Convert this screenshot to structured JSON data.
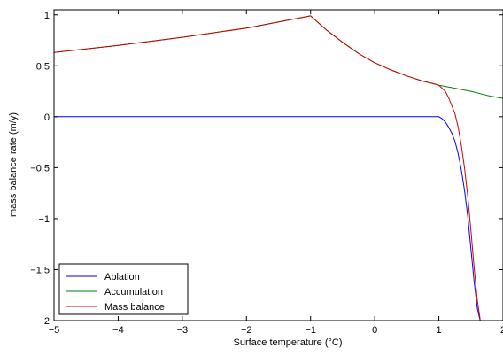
{
  "chart_data": {
    "type": "line",
    "title": "",
    "xlabel": "Surface temperature (°C)",
    "ylabel": "mass balance rate (m/y)",
    "xlim": [
      -5,
      2
    ],
    "ylim": [
      -2,
      1.05
    ],
    "grid": false,
    "legend_position": "bottom-left",
    "x_ticks": [
      -5,
      -4,
      -3,
      -2,
      -1,
      0,
      1,
      2
    ],
    "x_tick_labels": [
      "−5",
      "−4",
      "−3",
      "−2",
      "−1",
      "0",
      "1",
      "2"
    ],
    "y_ticks": [
      -2,
      -1.5,
      -1,
      -0.5,
      0,
      0.5,
      1
    ],
    "y_tick_labels": [
      "−2",
      "−1.5",
      "−1",
      "−0.5",
      "0",
      "0.5",
      "1"
    ],
    "series": [
      {
        "name": "Ablation",
        "color": "#0000ff",
        "x": [
          -5,
          -4,
          -3,
          -2,
          -1,
          0,
          0.5,
          0.95,
          1.0,
          1.05,
          1.1,
          1.15,
          1.2,
          1.25,
          1.3,
          1.35,
          1.4,
          1.45,
          1.5,
          1.55,
          1.6,
          1.65
        ],
        "y": [
          0,
          0,
          0,
          0,
          0,
          0,
          0,
          0,
          0,
          -0.02,
          -0.05,
          -0.1,
          -0.16,
          -0.24,
          -0.36,
          -0.52,
          -0.72,
          -0.98,
          -1.3,
          -1.62,
          -1.88,
          -2.02
        ]
      },
      {
        "name": "Accumulation",
        "color": "#008000",
        "x": [
          -5,
          -4,
          -3,
          -2,
          -1,
          -0.75,
          -0.5,
          -0.25,
          0,
          0.25,
          0.5,
          0.75,
          1.0,
          1.25,
          1.5,
          1.75,
          2
        ],
        "y": [
          0.63,
          0.7,
          0.78,
          0.87,
          0.99,
          0.85,
          0.73,
          0.62,
          0.53,
          0.46,
          0.4,
          0.35,
          0.31,
          0.28,
          0.25,
          0.21,
          0.18
        ]
      },
      {
        "name": "Mass balance",
        "color": "#cc0000",
        "x": [
          -5,
          -4,
          -3,
          -2,
          -1,
          -0.75,
          -0.5,
          -0.25,
          0,
          0.25,
          0.5,
          0.75,
          0.95,
          1.0,
          1.05,
          1.1,
          1.15,
          1.2,
          1.25,
          1.3,
          1.35,
          1.4,
          1.45,
          1.5,
          1.55,
          1.6,
          1.65
        ],
        "y": [
          0.63,
          0.7,
          0.78,
          0.87,
          0.99,
          0.85,
          0.73,
          0.62,
          0.53,
          0.46,
          0.4,
          0.35,
          0.32,
          0.31,
          0.28,
          0.25,
          0.19,
          0.11,
          0.03,
          -0.1,
          -0.28,
          -0.5,
          -0.78,
          -1.12,
          -1.48,
          -1.8,
          -2.02
        ]
      }
    ]
  }
}
